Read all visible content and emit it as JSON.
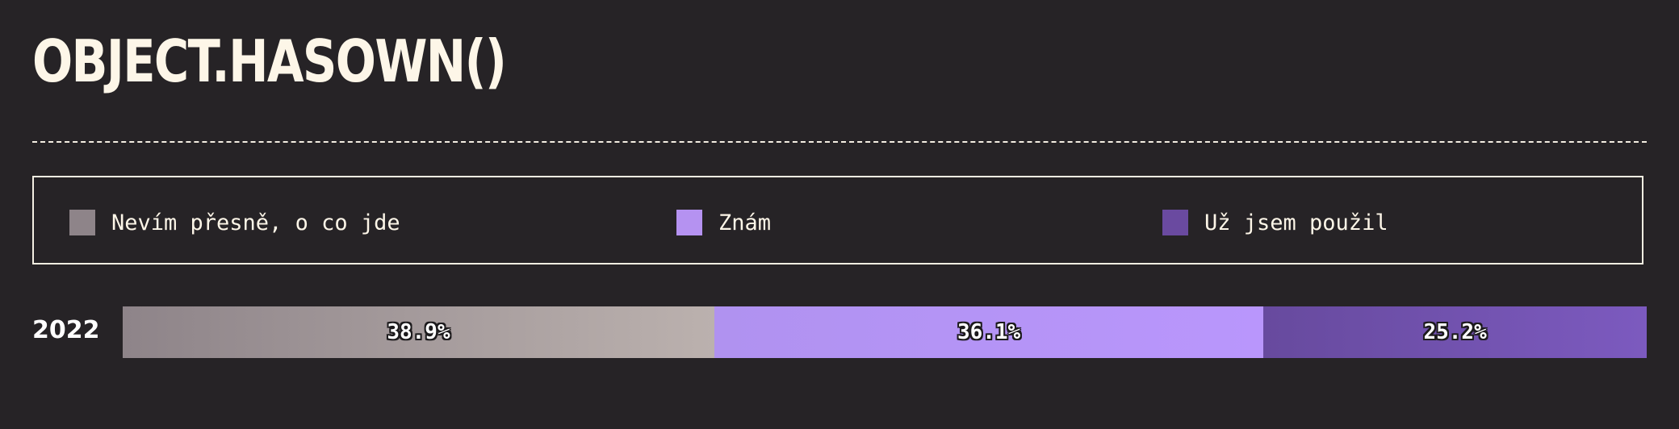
{
  "title": "OBJECT.HASOWN()",
  "legend": {
    "items": [
      {
        "label": "Nevím přesně, o co jde",
        "color": "#8e8489"
      },
      {
        "label": "Znám",
        "color": "#b592f1"
      },
      {
        "label": "Už jsem použil",
        "color": "#6a4aa0"
      }
    ]
  },
  "chart_data": {
    "type": "bar",
    "orientation": "horizontal",
    "stacked": true,
    "normalized": true,
    "categories": [
      "2022"
    ],
    "series": [
      {
        "name": "Nevím přesně, o co jde",
        "values": [
          38.9
        ],
        "labels": [
          "38.9%"
        ],
        "color_start": "#8e8489",
        "color_end": "#bbb1ae"
      },
      {
        "name": "Znám",
        "values": [
          36.1
        ],
        "labels": [
          "36.1%"
        ],
        "color_start": "#b092f0",
        "color_end": "#b996fc"
      },
      {
        "name": "Už jsem použil",
        "values": [
          25.2
        ],
        "labels": [
          "25.2%"
        ],
        "color_start": "#674a9e",
        "color_end": "#7c5abf"
      }
    ],
    "xlim": [
      0,
      100
    ],
    "unit": "%",
    "title": "OBJECT.HASOWN()",
    "xlabel": "",
    "ylabel": "",
    "grid": false,
    "legend_position": "top"
  }
}
